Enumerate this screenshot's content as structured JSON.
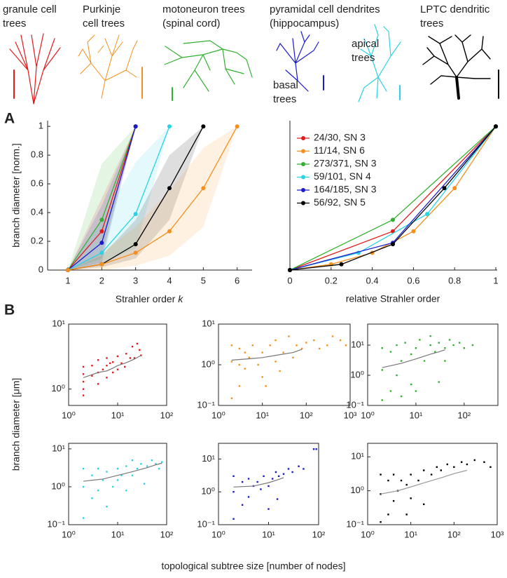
{
  "panel_labels": [
    "A",
    "B"
  ],
  "illustrations": [
    {
      "lines": [
        "granule cell",
        "trees"
      ],
      "color": "#e31a1c"
    },
    {
      "lines": [
        "Purkinje",
        "cell trees"
      ],
      "color": "#f4901e"
    },
    {
      "lines": [
        "motoneuron trees",
        "(spinal cord)"
      ],
      "color": "#33b030"
    },
    {
      "lines": [
        "pyramidal cell dendrites",
        "(hippocampus)"
      ],
      "color": "#1a8fb0"
    },
    {
      "lines": [
        "apical",
        "trees"
      ],
      "color": "#29d3e6"
    },
    {
      "lines": [
        "basal",
        "trees"
      ],
      "color": "#1a1acd"
    },
    {
      "lines": [
        "LPTC dendritic",
        "trees"
      ],
      "color": "#000000"
    }
  ],
  "panel_b_labels": {
    "ylabel": "branch diameter [μm]",
    "xlabel": "topological subtree size [number of nodes]"
  },
  "chart_data": [
    {
      "type": "line",
      "ylabel": "branch diameter [norm.]",
      "xlabel": {
        "text": "Strahler order",
        "var": "k"
      },
      "xlim": [
        0.4,
        6.4
      ],
      "ylim": [
        0,
        1.04
      ],
      "xticks": [
        1,
        2,
        3,
        4,
        5,
        6
      ],
      "yticks": [
        0,
        0.2,
        0.4,
        0.6,
        0.8,
        1
      ],
      "series": [
        {
          "color": "#33b030",
          "x": [
            1,
            2,
            3
          ],
          "values": [
            0,
            0.35,
            1
          ],
          "lower": [
            0,
            0.08,
            1
          ],
          "upper": [
            0,
            0.74,
            1
          ]
        },
        {
          "color": "#e31a1c",
          "x": [
            1,
            2,
            3
          ],
          "values": [
            0,
            0.27,
            1
          ],
          "lower": [
            0,
            0.1,
            1
          ],
          "upper": [
            0,
            0.5,
            1
          ]
        },
        {
          "color": "#1a1acd",
          "x": [
            1,
            2,
            3
          ],
          "values": [
            0,
            0.19,
            1
          ],
          "lower": [
            0,
            0.05,
            1
          ],
          "upper": [
            0,
            0.45,
            1
          ]
        },
        {
          "color": "#29d3e6",
          "x": [
            1,
            2,
            3,
            4
          ],
          "values": [
            0,
            0.12,
            0.39,
            1
          ],
          "lower": [
            0,
            0.05,
            0.15,
            1
          ],
          "upper": [
            0,
            0.35,
            0.75,
            1
          ]
        },
        {
          "color": "#000000",
          "x": [
            1,
            2,
            3,
            4,
            5
          ],
          "values": [
            0,
            0.04,
            0.18,
            0.57,
            1
          ],
          "lower": [
            0,
            0.02,
            0.08,
            0.35,
            1
          ],
          "upper": [
            0,
            0.1,
            0.35,
            0.8,
            1
          ]
        },
        {
          "color": "#f4901e",
          "x": [
            1,
            2,
            3,
            4,
            5,
            6
          ],
          "values": [
            0,
            0.04,
            0.12,
            0.27,
            0.57,
            1
          ],
          "lower": [
            0,
            0,
            0.03,
            0.1,
            0.3,
            1
          ],
          "upper": [
            0,
            0.12,
            0.3,
            0.55,
            0.85,
            1
          ]
        }
      ]
    },
    {
      "type": "line",
      "xlabel": "relative Strahler order",
      "xlim": [
        0,
        1
      ],
      "ylim": [
        0,
        1.04
      ],
      "xticks": [
        0,
        0.2,
        0.4,
        0.6,
        0.8,
        1
      ],
      "legend": "upper left",
      "series": [
        {
          "name": "24/30, SN 3",
          "color": "#e31a1c",
          "x": [
            0,
            0.5,
            1
          ],
          "values": [
            0,
            0.27,
            1
          ]
        },
        {
          "name": "11/14, SN 6",
          "color": "#f4901e",
          "x": [
            0,
            0.2,
            0.4,
            0.6,
            0.8,
            1
          ],
          "values": [
            0,
            0.04,
            0.12,
            0.27,
            0.57,
            1
          ]
        },
        {
          "name": "273/371, SN 3",
          "color": "#33b030",
          "x": [
            0,
            0.5,
            1
          ],
          "values": [
            0,
            0.35,
            1
          ]
        },
        {
          "name": "59/101, SN 4",
          "color": "#29d3e6",
          "x": [
            0,
            0.333,
            0.667,
            1
          ],
          "values": [
            0,
            0.12,
            0.39,
            1
          ]
        },
        {
          "name": "164/185, SN 3",
          "color": "#1a1acd",
          "x": [
            0,
            0.5,
            1
          ],
          "values": [
            0,
            0.19,
            1
          ]
        },
        {
          "name": "56/92, SN 5",
          "color": "#000000",
          "x": [
            0,
            0.25,
            0.5,
            0.75,
            1
          ],
          "values": [
            0,
            0.04,
            0.18,
            0.57,
            1
          ]
        }
      ]
    },
    {
      "type": "scatter",
      "log": true,
      "color": "#e31a1c",
      "xlim": [
        1,
        100
      ],
      "ylim": [
        0.56,
        10
      ],
      "xticks": [
        {
          "value": 1,
          "label": "10⁰"
        },
        {
          "value": 10,
          "label": "10¹"
        },
        {
          "value": 100,
          "label": "10²"
        }
      ],
      "yticks": [
        {
          "value": 1,
          "label": "10⁰"
        },
        {
          "value": 10,
          "label": "10¹"
        }
      ],
      "x": [
        2,
        2,
        2,
        2,
        2,
        3,
        3,
        4,
        4,
        4,
        5,
        6,
        6,
        6,
        7,
        8,
        8,
        10,
        10,
        12,
        14,
        15,
        18,
        20,
        22,
        25,
        28,
        30
      ],
      "values": [
        0.8,
        1,
        1.3,
        1.7,
        2.2,
        1.6,
        2.3,
        1.2,
        1.8,
        2.8,
        2,
        1.5,
        2.3,
        3,
        2.5,
        1.8,
        2.6,
        2,
        3.2,
        2.5,
        2.2,
        3.5,
        3,
        4.5,
        3,
        5,
        4,
        3.3
      ],
      "trend": {
        "color": "#777777",
        "x": [
          2,
          4,
          6,
          8,
          10,
          14,
          18,
          22,
          26,
          30
        ],
        "values": [
          1.5,
          1.8,
          1.9,
          2.1,
          2.3,
          2.5,
          2.7,
          2.9,
          3.1,
          3.3
        ]
      }
    },
    {
      "type": "scatter",
      "log": true,
      "color": "#f4901e",
      "xlim": [
        1,
        1000
      ],
      "ylim": [
        0.1,
        10
      ],
      "xticks": [
        {
          "value": 1,
          "label": "10⁰"
        },
        {
          "value": 10,
          "label": "10¹"
        },
        {
          "value": 100,
          "label": "10²"
        },
        {
          "value": 1000,
          "label": "10³"
        }
      ],
      "yticks": [
        {
          "value": 0.1,
          "label": "10⁻¹"
        },
        {
          "value": 1,
          "label": "10⁰"
        },
        {
          "value": 10,
          "label": "10¹"
        }
      ],
      "x": [
        2,
        2,
        2,
        3,
        3,
        4,
        4,
        5,
        6,
        8,
        10,
        10,
        15,
        20,
        20,
        30,
        40,
        50,
        60,
        80,
        100,
        150,
        200,
        300,
        400,
        600,
        800,
        3,
        12,
        25
      ],
      "values": [
        0.15,
        1.2,
        3,
        0.3,
        2.5,
        0.8,
        2,
        1.5,
        3,
        1,
        0.5,
        2,
        3,
        1.2,
        4,
        2,
        5,
        1.5,
        3,
        2.5,
        3.5,
        4,
        2.5,
        3,
        5,
        4,
        3,
        1,
        0.3,
        0.7
      ],
      "trend": {
        "color": "#777777",
        "x": [
          2,
          5,
          10,
          20,
          50,
          80
        ],
        "values": [
          1.3,
          1.4,
          1.5,
          1.7,
          2,
          2.4
        ]
      }
    },
    {
      "type": "scatter",
      "log": true,
      "color": "#33b030",
      "xlim": [
        1,
        500
      ],
      "ylim": [
        0.1,
        50
      ],
      "xticks": [
        {
          "value": 1,
          "label": "10⁰"
        },
        {
          "value": 10,
          "label": "10¹"
        },
        {
          "value": 100,
          "label": "10²"
        }
      ],
      "yticks": [
        {
          "value": 0.1,
          "label": "10⁻¹"
        },
        {
          "value": 1,
          "label": "10⁰"
        },
        {
          "value": 10,
          "label": "10¹"
        }
      ],
      "x": [
        2,
        2,
        2,
        3,
        3,
        4,
        4,
        5,
        6,
        8,
        8,
        10,
        12,
        15,
        20,
        20,
        25,
        30,
        40,
        50,
        60,
        80,
        100,
        150,
        5,
        10,
        30,
        40
      ],
      "values": [
        0.15,
        1.5,
        8,
        0.3,
        6,
        1,
        10,
        3,
        12,
        0.5,
        5,
        8,
        15,
        3,
        10,
        20,
        6,
        12,
        8,
        15,
        10,
        12,
        8,
        10,
        0.2,
        0.3,
        0.6,
        3
      ],
      "trend": {
        "color": "#777777",
        "x": [
          2,
          5,
          10,
          20,
          30,
          40
        ],
        "values": [
          1.8,
          2.5,
          3.5,
          5,
          6,
          7
        ]
      }
    },
    {
      "type": "scatter",
      "log": true,
      "color": "#29d3e6",
      "xlim": [
        1,
        100
      ],
      "ylim": [
        0.1,
        14
      ],
      "xticks": [
        {
          "value": 1,
          "label": "10⁰"
        },
        {
          "value": 10,
          "label": "10¹"
        },
        {
          "value": 100,
          "label": "10²"
        }
      ],
      "yticks": [
        {
          "value": 0.1,
          "label": "10⁻¹"
        },
        {
          "value": 1,
          "label": "10⁰"
        },
        {
          "value": 10,
          "label": "10¹"
        }
      ],
      "x": [
        2,
        2,
        2,
        3,
        3,
        4,
        4,
        5,
        6,
        8,
        10,
        10,
        12,
        15,
        20,
        20,
        25,
        30,
        40,
        50,
        60,
        70,
        80,
        6,
        15,
        35
      ],
      "values": [
        0.15,
        1,
        3,
        0.5,
        2,
        0.8,
        3,
        1.5,
        2.5,
        1,
        1.5,
        3,
        2,
        3.5,
        2,
        5,
        3,
        4,
        3.5,
        5,
        4,
        3,
        4.5,
        0.3,
        0.8,
        1.2
      ],
      "trend": {
        "color": "#777777",
        "x": [
          2,
          5,
          10,
          20,
          40,
          60,
          80
        ],
        "values": [
          1.4,
          1.6,
          2,
          2.5,
          3.2,
          3.8,
          4.2
        ]
      }
    },
    {
      "type": "scatter",
      "log": true,
      "color": "#1a1acd",
      "xlim": [
        1,
        100
      ],
      "ylim": [
        0.1,
        30
      ],
      "xticks": [
        {
          "value": 1,
          "label": "10⁰"
        },
        {
          "value": 10,
          "label": "10¹"
        },
        {
          "value": 100,
          "label": "10²"
        }
      ],
      "yticks": [
        {
          "value": 0.1,
          "label": "10⁻¹"
        },
        {
          "value": 1,
          "label": "10⁰"
        },
        {
          "value": 10,
          "label": "10¹"
        }
      ],
      "x": [
        2,
        2,
        2,
        3,
        3,
        4,
        4,
        5,
        6,
        7,
        8,
        10,
        12,
        14,
        16,
        20,
        25,
        30,
        40,
        50,
        80,
        90,
        10,
        15
      ],
      "values": [
        0.15,
        1,
        3,
        0.4,
        2,
        0.7,
        2.5,
        1.5,
        2,
        1.2,
        3,
        1.5,
        2.5,
        4,
        3,
        3.5,
        5,
        4,
        6,
        5,
        20,
        20,
        0.3,
        0.6
      ],
      "trend": {
        "color": "#777777",
        "x": [
          2,
          5,
          10,
          15,
          20
        ],
        "values": [
          1.4,
          1.5,
          1.9,
          2.3,
          2.7
        ]
      }
    },
    {
      "type": "scatter",
      "log": true,
      "color": "#000000",
      "xlim": [
        1,
        1000
      ],
      "ylim": [
        0.1,
        25
      ],
      "xticks": [
        {
          "value": 1,
          "label": "10⁰"
        },
        {
          "value": 10,
          "label": "10¹"
        },
        {
          "value": 100,
          "label": "10²"
        },
        {
          "value": 1000,
          "label": "10³"
        }
      ],
      "yticks": [
        {
          "value": 0.1,
          "label": "10⁻¹"
        },
        {
          "value": 1,
          "label": "10⁰"
        },
        {
          "value": 10,
          "label": "10¹"
        }
      ],
      "x": [
        2,
        2,
        2,
        3,
        3,
        4,
        4,
        5,
        6,
        8,
        10,
        10,
        15,
        20,
        30,
        40,
        50,
        70,
        100,
        150,
        200,
        300,
        500,
        700,
        8,
        20
      ],
      "values": [
        0.12,
        0.8,
        3,
        0.2,
        2,
        0.5,
        3,
        1,
        2,
        1.5,
        0.6,
        3,
        2,
        4,
        3,
        5,
        4,
        6,
        5,
        7,
        6,
        8,
        7,
        5,
        0.2,
        0.4
      ],
      "trend": {
        "color": "#999999",
        "x": [
          2,
          5,
          10,
          20,
          50,
          100,
          200
        ],
        "values": [
          0.8,
          1,
          1.3,
          1.7,
          2.4,
          3.2,
          4
        ]
      }
    }
  ]
}
